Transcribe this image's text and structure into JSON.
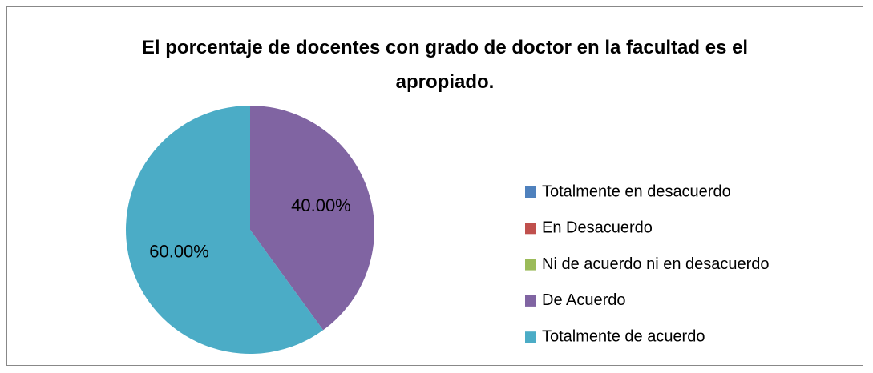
{
  "chart_data": {
    "type": "pie",
    "title": "El porcentaje de docentes con grado de doctor en la facultad es el apropiado.",
    "categories": [
      "Totalmente en desacuerdo",
      "En Desacuerdo",
      "Ni de acuerdo ni en desacuerdo",
      "De Acuerdo",
      "Totalmente de acuerdo"
    ],
    "values": [
      0,
      0,
      0,
      40,
      60
    ],
    "value_labels": [
      null,
      null,
      null,
      "40.00%",
      "60.00%"
    ],
    "colors": [
      "#4f81bd",
      "#c0504d",
      "#9bbb59",
      "#8064a2",
      "#4bacc6"
    ],
    "legend": "right"
  }
}
